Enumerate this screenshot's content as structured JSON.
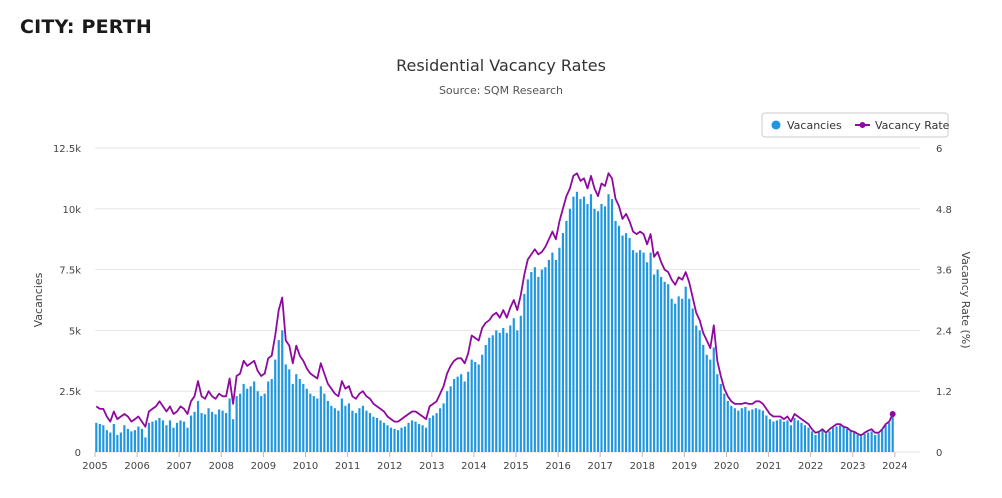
{
  "page": {
    "heading": "CITY: PERTH"
  },
  "colors": {
    "vacancies": "#1f97e0",
    "vacancy_rate": "#8e0a9e"
  },
  "chart_data": {
    "type": "bar",
    "title": "Residential Vacancy Rates",
    "subtitle": "Source: SQM Research",
    "xlabel": "",
    "ylabel": "Vacancies",
    "y2label": "Vacancy Rate (%)",
    "ylim": [
      0,
      12500
    ],
    "y2lim": [
      0,
      6
    ],
    "yticks": [
      "0",
      "2.5k",
      "5k",
      "7.5k",
      "10k",
      "12.5k"
    ],
    "y2ticks": [
      "0",
      "1.2",
      "2.4",
      "3.6",
      "4.8",
      "6"
    ],
    "xticks": [
      "2005",
      "2006",
      "2007",
      "2008",
      "2009",
      "2010",
      "2011",
      "2012",
      "2013",
      "2014",
      "2015",
      "2016",
      "2017",
      "2018",
      "2019",
      "2020",
      "2021",
      "2022",
      "2023",
      "2024"
    ],
    "x_start": "2005-01",
    "legend_position": "top-right",
    "grid": true,
    "series": [
      {
        "name": "Vacancies",
        "type": "bar",
        "values": [
          1200,
          1150,
          1100,
          900,
          800,
          1150,
          700,
          800,
          1100,
          950,
          850,
          900,
          1050,
          950,
          600,
          1200,
          1250,
          1300,
          1400,
          1300,
          1100,
          1300,
          1000,
          1200,
          1300,
          1250,
          1000,
          1500,
          1650,
          2100,
          1600,
          1550,
          1800,
          1650,
          1550,
          1750,
          1700,
          1600,
          2200,
          1350,
          2300,
          2400,
          2800,
          2600,
          2700,
          2900,
          2500,
          2300,
          2400,
          2900,
          3000,
          3800,
          4600,
          5000,
          3600,
          3400,
          2800,
          3200,
          3000,
          2800,
          2600,
          2400,
          2300,
          2200,
          2700,
          2400,
          2100,
          1900,
          1800,
          1700,
          2200,
          1900,
          2000,
          1700,
          1600,
          1800,
          1900,
          1700,
          1600,
          1450,
          1400,
          1300,
          1200,
          1100,
          1000,
          950,
          900,
          1000,
          1050,
          1200,
          1300,
          1250,
          1150,
          1100,
          1000,
          1400,
          1500,
          1600,
          1800,
          2000,
          2500,
          2700,
          3000,
          3100,
          3200,
          2900,
          3300,
          3800,
          3700,
          3600,
          4000,
          4400,
          4700,
          4800,
          5000,
          4900,
          5100,
          4900,
          5200,
          5500,
          5000,
          5600,
          6500,
          7100,
          7400,
          7600,
          7200,
          7500,
          7600,
          7900,
          8200,
          7900,
          8400,
          9000,
          9500,
          10000,
          10500,
          10700,
          10400,
          10500,
          10200,
          10600,
          10000,
          9900,
          10200,
          10100,
          10600,
          10400,
          9500,
          9300,
          8900,
          9000,
          8800,
          8300,
          8200,
          8300,
          8200,
          7800,
          8200,
          7300,
          7500,
          7200,
          7000,
          6900,
          6300,
          6100,
          6400,
          6300,
          6800,
          6300,
          5900,
          5200,
          5000,
          4400,
          4000,
          3800,
          4300,
          3200,
          2800,
          2400,
          2100,
          1900,
          1800,
          1700,
          1800,
          1850,
          1700,
          1750,
          1800,
          1750,
          1700,
          1500,
          1350,
          1250,
          1300,
          1350,
          1250,
          1300,
          1100,
          1400,
          1300,
          1200,
          1100,
          1000,
          850,
          700,
          800,
          900,
          750,
          850,
          1000,
          1050,
          1100,
          1050,
          950,
          850,
          800,
          700,
          650,
          750,
          800,
          850,
          700,
          750,
          900,
          1100,
          1200,
          1500
        ]
      },
      {
        "name": "Vacancy Rate",
        "type": "line",
        "axis": "right",
        "values": [
          0.9,
          0.85,
          0.85,
          0.7,
          0.6,
          0.8,
          0.65,
          0.7,
          0.75,
          0.7,
          0.6,
          0.65,
          0.7,
          0.6,
          0.5,
          0.8,
          0.85,
          0.9,
          1.0,
          0.9,
          0.8,
          0.9,
          0.75,
          0.8,
          0.9,
          0.85,
          0.75,
          1.0,
          1.1,
          1.4,
          1.1,
          1.05,
          1.2,
          1.1,
          1.05,
          1.15,
          1.1,
          1.1,
          1.45,
          0.95,
          1.5,
          1.55,
          1.8,
          1.7,
          1.75,
          1.8,
          1.6,
          1.5,
          1.55,
          1.85,
          1.9,
          2.3,
          2.8,
          3.05,
          2.2,
          2.1,
          1.75,
          2.1,
          1.9,
          1.8,
          1.65,
          1.55,
          1.5,
          1.45,
          1.75,
          1.55,
          1.35,
          1.25,
          1.15,
          1.1,
          1.4,
          1.25,
          1.3,
          1.1,
          1.05,
          1.15,
          1.2,
          1.1,
          1.05,
          0.95,
          0.9,
          0.85,
          0.8,
          0.7,
          0.65,
          0.6,
          0.6,
          0.65,
          0.7,
          0.75,
          0.8,
          0.8,
          0.75,
          0.7,
          0.65,
          0.9,
          0.95,
          1.0,
          1.15,
          1.3,
          1.55,
          1.7,
          1.8,
          1.85,
          1.85,
          1.75,
          1.95,
          2.3,
          2.25,
          2.2,
          2.45,
          2.55,
          2.6,
          2.7,
          2.75,
          2.65,
          2.8,
          2.65,
          2.85,
          3.0,
          2.8,
          3.1,
          3.5,
          3.8,
          3.9,
          4.0,
          3.9,
          3.95,
          4.05,
          4.2,
          4.35,
          4.2,
          4.55,
          4.8,
          5.05,
          5.2,
          5.45,
          5.5,
          5.35,
          5.4,
          5.2,
          5.45,
          5.2,
          5.05,
          5.3,
          5.25,
          5.5,
          5.4,
          5.0,
          4.85,
          4.6,
          4.7,
          4.55,
          4.35,
          4.3,
          4.35,
          4.3,
          4.1,
          4.3,
          3.85,
          3.95,
          3.75,
          3.6,
          3.55,
          3.4,
          3.3,
          3.45,
          3.4,
          3.55,
          3.35,
          3.05,
          2.75,
          2.6,
          2.35,
          2.2,
          2.05,
          2.5,
          1.8,
          1.5,
          1.25,
          1.1,
          1.0,
          0.95,
          0.95,
          0.95,
          0.97,
          0.95,
          0.95,
          1.0,
          1.0,
          0.95,
          0.85,
          0.75,
          0.7,
          0.7,
          0.7,
          0.65,
          0.7,
          0.6,
          0.75,
          0.7,
          0.65,
          0.6,
          0.55,
          0.45,
          0.38,
          0.4,
          0.45,
          0.38,
          0.45,
          0.5,
          0.55,
          0.55,
          0.5,
          0.48,
          0.42,
          0.4,
          0.36,
          0.33,
          0.38,
          0.42,
          0.45,
          0.38,
          0.38,
          0.45,
          0.55,
          0.6,
          0.75
        ]
      }
    ]
  }
}
